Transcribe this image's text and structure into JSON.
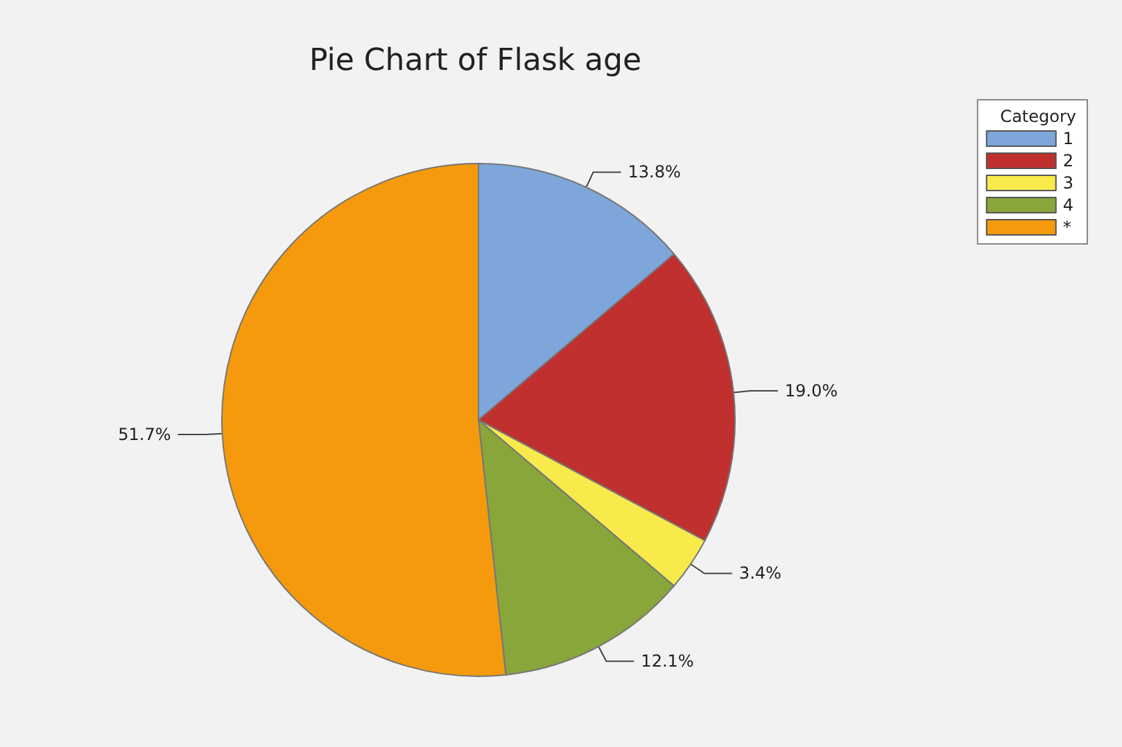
{
  "chart_data": {
    "type": "pie",
    "title": "Pie Chart of Flask age",
    "legend_title": "Category",
    "legend": "top right",
    "categories": [
      "1",
      "2",
      "3",
      "4",
      "*"
    ],
    "values": [
      13.8,
      19.0,
      3.4,
      12.1,
      51.7
    ],
    "value_labels": [
      "13.8%",
      "19.0%",
      "3.4%",
      "12.1%",
      "51.7%"
    ],
    "colors": [
      "#7ea6db",
      "#c0302f",
      "#f7ea4a",
      "#88a63a",
      "#f59a0c"
    ]
  }
}
